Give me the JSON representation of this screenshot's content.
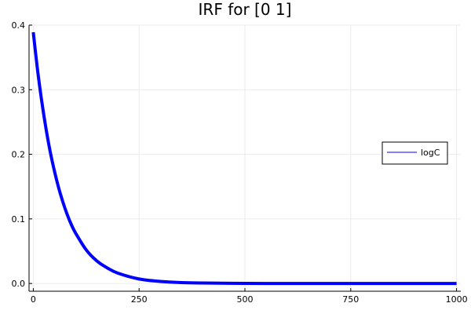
{
  "chart_data": {
    "type": "line",
    "title": "IRF for [0 1]",
    "xlabel": "",
    "ylabel": "",
    "xlim": [
      -10,
      1010
    ],
    "ylim": [
      -0.012,
      0.4
    ],
    "xticks": [
      0,
      250,
      500,
      750,
      1000
    ],
    "xtick_labels": [
      "0",
      "250",
      "500",
      "750",
      "1000"
    ],
    "yticks": [
      0.0,
      0.1,
      0.2,
      0.3,
      0.4
    ],
    "ytick_labels": [
      "0.0",
      "0.1",
      "0.2",
      "0.3",
      "0.4"
    ],
    "grid": true,
    "legend_position": "right",
    "series": [
      {
        "name": "logC",
        "color": "#0000ff",
        "x": [
          0,
          10,
          20,
          30,
          40,
          50,
          60,
          70,
          80,
          90,
          100,
          125,
          150,
          175,
          200,
          250,
          300,
          350,
          400,
          500,
          600,
          700,
          800,
          900,
          1000
        ],
        "y": [
          0.389,
          0.331,
          0.282,
          0.24,
          0.204,
          0.174,
          0.148,
          0.126,
          0.107,
          0.091,
          0.078,
          0.052,
          0.035,
          0.024,
          0.016,
          0.007,
          0.0032,
          0.0014,
          0.0007,
          0.0001,
          0.0,
          0.0,
          0.0,
          0.0,
          0.0
        ]
      }
    ]
  }
}
